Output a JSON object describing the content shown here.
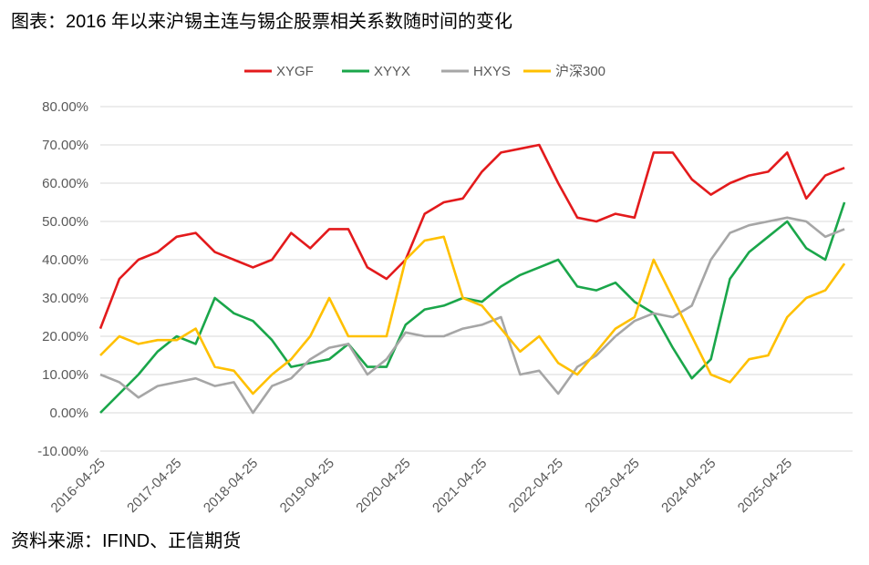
{
  "title": "图表：2016 年以来沪锡主连与锡企股票相关系数随时间的变化",
  "source": "资料来源：IFIND、正信期货",
  "chart_data": {
    "type": "line",
    "title": "图表：2016 年以来沪锡主连与锡企股票相关系数随时间的变化",
    "xlabel": "",
    "ylabel": "",
    "ylim": [
      -10,
      80
    ],
    "yticks": [
      "-10.00%",
      "0.00%",
      "10.00%",
      "20.00%",
      "30.00%",
      "40.00%",
      "50.00%",
      "60.00%",
      "70.00%",
      "80.00%"
    ],
    "ytick_values": [
      -10,
      0,
      10,
      20,
      30,
      40,
      50,
      60,
      70,
      80
    ],
    "xticks": [
      "2016-04-25",
      "2017-04-25",
      "2018-04-25",
      "2019-04-25",
      "2020-04-25",
      "2021-04-25",
      "2022-04-25",
      "2023-04-25",
      "2024-04-25",
      "2025-04-25"
    ],
    "grid": "horizontal",
    "legend_position": "top",
    "x_start": "2016-04",
    "x_step_months": 3,
    "series": [
      {
        "name": "XYGF",
        "color": "#e31a1c",
        "values": [
          22,
          35,
          40,
          42,
          46,
          47,
          42,
          40,
          38,
          40,
          47,
          43,
          48,
          48,
          38,
          35,
          40,
          52,
          55,
          56,
          63,
          68,
          69,
          70,
          60,
          51,
          50,
          52,
          51,
          68,
          68,
          61,
          57,
          60,
          62,
          63,
          68,
          56,
          62,
          64
        ]
      },
      {
        "name": "XYYX",
        "color": "#1aa64a",
        "values": [
          0,
          5,
          10,
          16,
          20,
          18,
          30,
          26,
          24,
          19,
          12,
          13,
          14,
          18,
          12,
          12,
          23,
          27,
          28,
          30,
          29,
          33,
          36,
          38,
          40,
          33,
          32,
          34,
          29,
          26,
          17,
          9,
          14,
          35,
          42,
          46,
          50,
          43,
          40,
          55
        ]
      },
      {
        "name": "HXYS",
        "color": "#a6a6a6",
        "values": [
          10,
          8,
          4,
          7,
          8,
          9,
          7,
          8,
          0,
          7,
          9,
          14,
          17,
          18,
          10,
          14,
          21,
          20,
          20,
          22,
          23,
          25,
          10,
          11,
          5,
          12,
          15,
          20,
          24,
          26,
          25,
          28,
          40,
          47,
          49,
          50,
          51,
          50,
          46,
          48
        ]
      },
      {
        "name": "沪深300",
        "color": "#ffc000",
        "values": [
          15,
          20,
          18,
          19,
          19,
          22,
          12,
          11,
          5,
          10,
          14,
          20,
          30,
          20,
          20,
          20,
          40,
          45,
          46,
          30,
          28,
          22,
          16,
          20,
          13,
          10,
          16,
          22,
          25,
          40,
          30,
          20,
          10,
          8,
          14,
          15,
          25,
          30,
          32,
          39
        ]
      }
    ]
  }
}
